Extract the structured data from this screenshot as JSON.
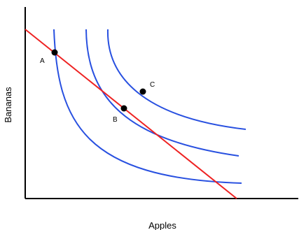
{
  "diagram": {
    "x_axis_label": "Apples",
    "y_axis_label": "Bananas",
    "colors": {
      "axes": "#000000",
      "indifference_curves": "#2850e0",
      "budget_line": "#ee2222",
      "points": "#000000"
    },
    "indifference_curve_count": 3,
    "points": [
      {
        "label": "A",
        "on": "budget line and lowest indifference curve"
      },
      {
        "label": "B",
        "on": "budget line and middle indifference curve (tangency)"
      },
      {
        "label": "C",
        "on": "highest indifference curve"
      }
    ]
  }
}
